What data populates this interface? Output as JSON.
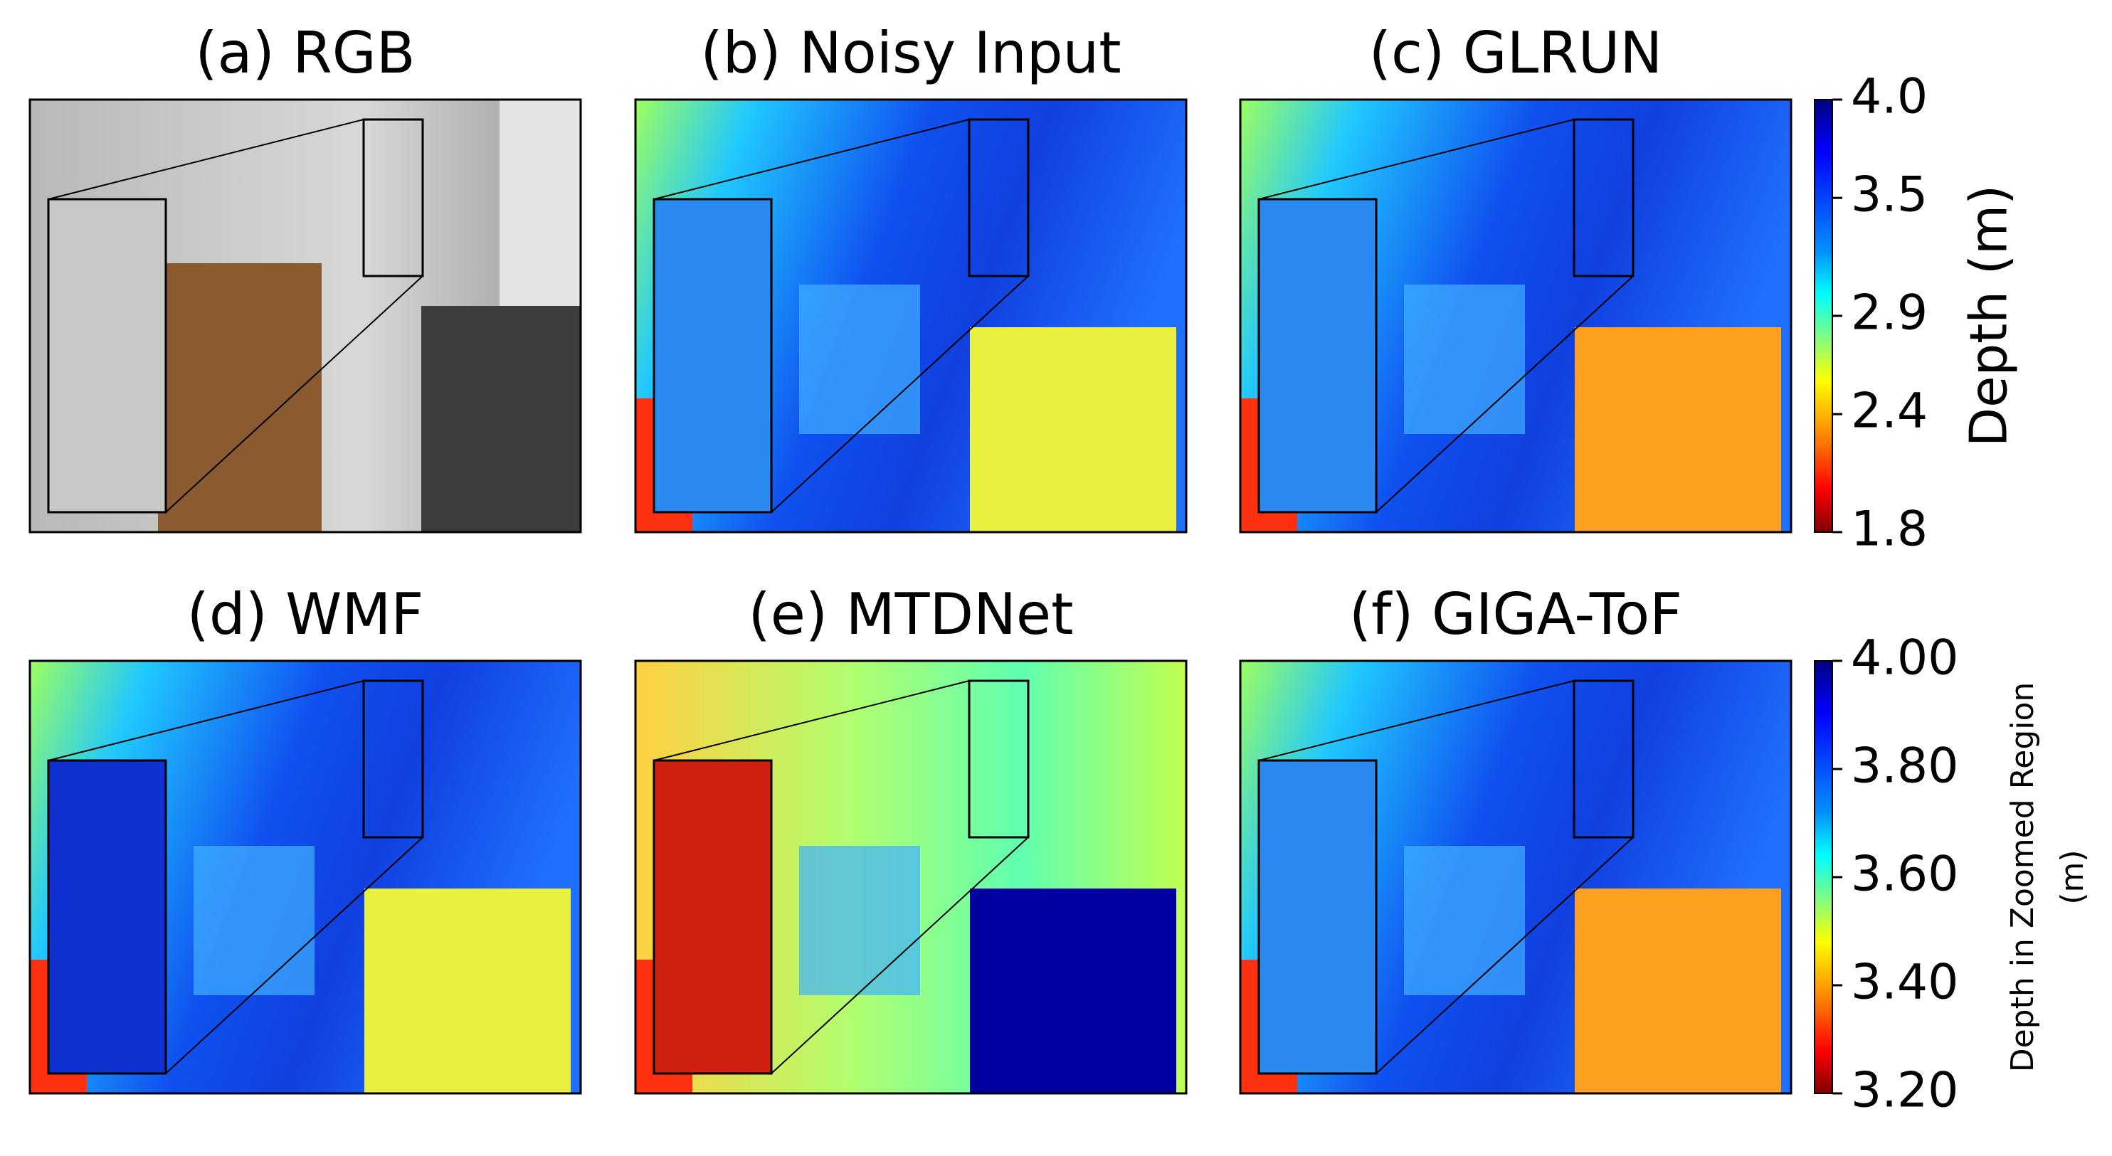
{
  "panels": [
    {
      "title": "(a) RGB"
    },
    {
      "title": "(b) Noisy Input"
    },
    {
      "title": "(c) GLRUN"
    },
    {
      "title": "(d) WMF"
    },
    {
      "title": "(e) MTDNet"
    },
    {
      "title": "(f) GIGA-ToF"
    }
  ],
  "colorbars": [
    {
      "label_lines": [
        "Depth (m)"
      ],
      "lim": [
        1.8,
        4.0
      ],
      "ticks": [
        {
          "value": 4,
          "label": "4.0"
        },
        3.5,
        2.9,
        2.4,
        1.8
      ]
    },
    {
      "label_lines": [
        "Depth in Zoomed Region",
        "(m)"
      ],
      "lim": [
        3.2,
        4.0
      ],
      "ticks": [
        {
          "value": 4,
          "label": "4.00"
        },
        {
          "value": 3.8,
          "label": "3.80"
        },
        {
          "value": 3.6,
          "label": "3.60"
        },
        {
          "value": 3.4,
          "label": "3.40"
        },
        {
          "value": 3.2,
          "label": "3.20"
        }
      ]
    }
  ]
}
